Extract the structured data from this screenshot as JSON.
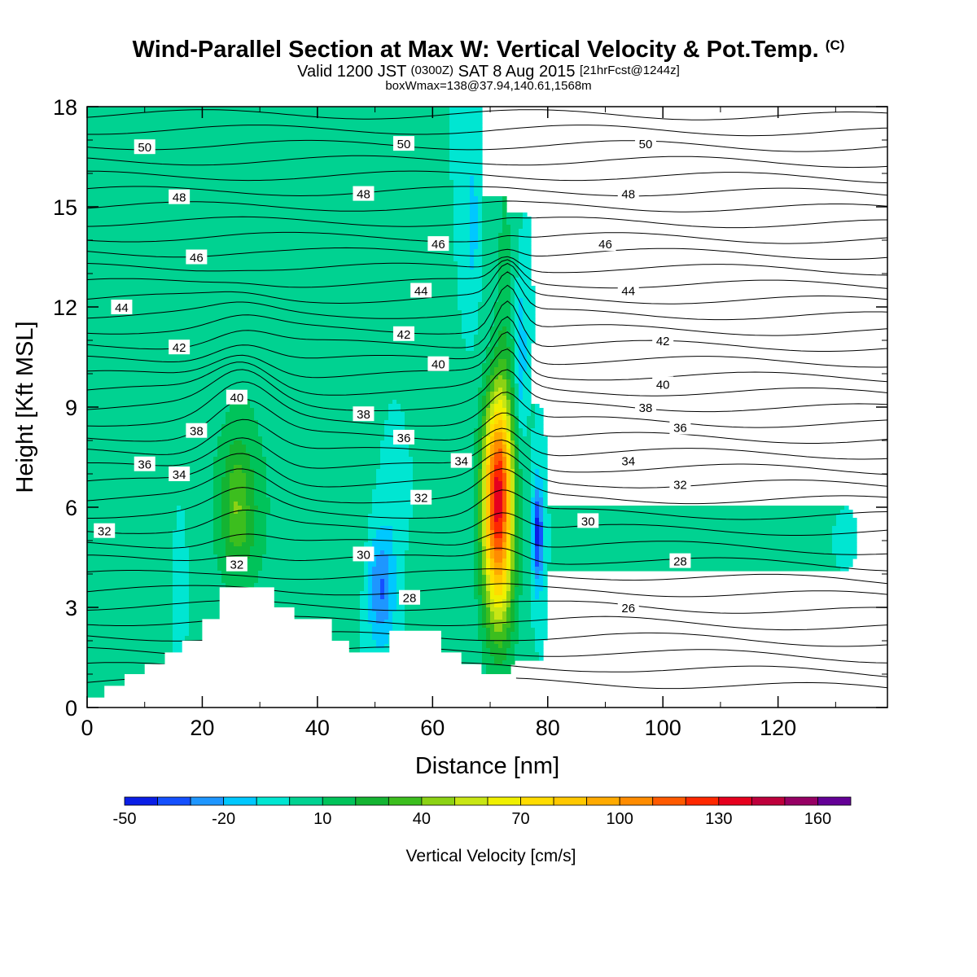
{
  "header": {
    "title": "Wind-Parallel Section at Max W: Vertical Velocity & Pot.Temp.",
    "title_mark": "(C)",
    "valid_prefix": "Valid 1200 JST",
    "valid_utc": "(0300Z)",
    "valid_date": "SAT 8 Aug 2015",
    "forecast_info": "[21hrFcst@1244z]",
    "box_info": "boxWmax=138@37.94,140.61,1568m"
  },
  "chart_data": {
    "type": "contour",
    "xlabel": "Distance [nm]",
    "ylabel": "Height [Kft MSL]",
    "xlim": [
      0,
      139
    ],
    "ylim": [
      0,
      18
    ],
    "x_ticks": [
      "0",
      "20",
      "40",
      "60",
      "80",
      "100",
      "120"
    ],
    "y_ticks": [
      "0",
      "3",
      "6",
      "9",
      "12",
      "15",
      "18"
    ],
    "colorbar": {
      "label": "Vertical Velocity [cm/s]",
      "tick_labels": [
        "-50",
        "-20",
        "10",
        "40",
        "70",
        "100",
        "130",
        "160"
      ],
      "levels": [
        -50,
        -40,
        -30,
        -20,
        -10,
        0,
        10,
        20,
        30,
        40,
        50,
        60,
        70,
        80,
        90,
        100,
        110,
        120,
        130,
        140,
        150,
        160,
        170
      ],
      "colors": [
        "#0a1ee6",
        "#1450ff",
        "#1e96ff",
        "#00c8ff",
        "#00e6d2",
        "#00d291",
        "#00c35a",
        "#14b432",
        "#3cbe1e",
        "#8cd214",
        "#c8e614",
        "#f0f000",
        "#ffdc00",
        "#ffc800",
        "#ffaa00",
        "#ff8c00",
        "#ff5a00",
        "#ff2800",
        "#e6001e",
        "#be003c",
        "#960064",
        "#640096"
      ]
    },
    "theta_contour_labels": [
      "26",
      "28",
      "30",
      "32",
      "34",
      "36",
      "38",
      "40",
      "42",
      "44",
      "46",
      "48",
      "50"
    ],
    "max_updraft": {
      "distance_nm": 71.5,
      "height_kft": 6.3,
      "w_cms": 138
    },
    "terrain_profile": [
      [
        0,
        0.3
      ],
      [
        3,
        0.3
      ],
      [
        3,
        0.65
      ],
      [
        6.5,
        0.65
      ],
      [
        6.5,
        1.0
      ],
      [
        10,
        1.0
      ],
      [
        10,
        1.3
      ],
      [
        13.5,
        1.3
      ],
      [
        13.5,
        1.65
      ],
      [
        16.5,
        1.65
      ],
      [
        16.5,
        2.0
      ],
      [
        20,
        2.0
      ],
      [
        20,
        2.65
      ],
      [
        23,
        2.65
      ],
      [
        23,
        3.6
      ],
      [
        32.5,
        3.6
      ],
      [
        32.5,
        3.0
      ],
      [
        36,
        3.0
      ],
      [
        36,
        2.65
      ],
      [
        42.5,
        2.65
      ],
      [
        42.5,
        2.0
      ],
      [
        45.5,
        2.0
      ],
      [
        45.5,
        1.65
      ],
      [
        52.5,
        1.65
      ],
      [
        52.5,
        2.3
      ],
      [
        61.5,
        2.3
      ],
      [
        61.5,
        1.65
      ],
      [
        65,
        1.65
      ],
      [
        65,
        1.3
      ],
      [
        68.5,
        1.3
      ],
      [
        68.5,
        1.0
      ],
      [
        74.5,
        1.0
      ],
      [
        74.5,
        0.65
      ],
      [
        81,
        0.65
      ],
      [
        81,
        0.3
      ],
      [
        139,
        0.3
      ]
    ],
    "grid": false
  }
}
